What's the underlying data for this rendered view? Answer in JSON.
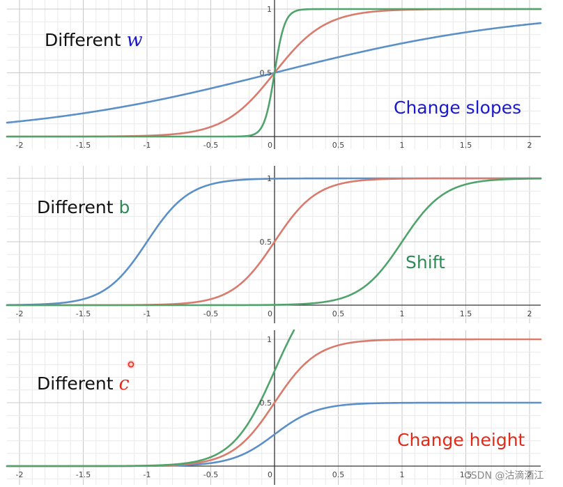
{
  "colors": {
    "blue": "#5b8fc7",
    "red": "#d97a6c",
    "green": "#4fa36b",
    "grid_minor": "#e9e9e9",
    "grid_major": "#c8c8c8",
    "axis": "#333333",
    "label_blue": "#1a1acc",
    "label_green": "#2e8b57",
    "label_red": "#e02a1a"
  },
  "watermark": "CSDN @沽滴酒江",
  "chart_data": [
    {
      "type": "line",
      "title": "",
      "label_prefix": "Different ",
      "label_symbol": "w",
      "annotation": "Change slopes",
      "xlim": [
        -2.1,
        2.1
      ],
      "ylim": [
        0,
        1
      ],
      "x_ticks": [
        "-2",
        "-1.5",
        "-1",
        "-0.5",
        "0",
        "0.5",
        "1",
        "1.5",
        "2"
      ],
      "y_ticks": [
        "0.5",
        "1"
      ],
      "grid": true,
      "series": [
        {
          "color": "blue",
          "formula": "sigmoid(w*x)",
          "w": 1
        },
        {
          "color": "red",
          "formula": "sigmoid(w*x)",
          "w": 5
        },
        {
          "color": "green",
          "formula": "sigmoid(w*x)",
          "w": 25
        }
      ]
    },
    {
      "type": "line",
      "title": "",
      "label_prefix": "Different ",
      "label_symbol": "b",
      "annotation": "Shift",
      "xlim": [
        -2.1,
        2.1
      ],
      "ylim": [
        0,
        1
      ],
      "x_ticks": [
        "-2",
        "-1.5",
        "-1",
        "-0.5",
        "0",
        "0.5",
        "1",
        "1.5",
        "2"
      ],
      "y_ticks": [
        "0.5",
        "1"
      ],
      "grid": true,
      "series": [
        {
          "color": "blue",
          "formula": "sigmoid(6*(x+1))"
        },
        {
          "color": "red",
          "formula": "sigmoid(6*x)"
        },
        {
          "color": "green",
          "formula": "sigmoid(6*(x-1))"
        }
      ]
    },
    {
      "type": "line",
      "title": "",
      "label_prefix": "Different ",
      "label_symbol": "c",
      "annotation": "Change height",
      "xlim": [
        -2.1,
        2.1
      ],
      "ylim": [
        0,
        1
      ],
      "x_ticks": [
        "-2",
        "-1.5",
        "-1",
        "-0.5",
        "0",
        "0.5",
        "1",
        "1.5",
        "2"
      ],
      "y_ticks": [
        "0.5",
        "1"
      ],
      "grid": true,
      "series": [
        {
          "color": "blue",
          "formula": "c*sigmoid(6*x)",
          "c": 0.5
        },
        {
          "color": "red",
          "formula": "c*sigmoid(6*x)",
          "c": 1
        },
        {
          "color": "green",
          "formula": "c*sigmoid(6*x)",
          "c": 1.5
        }
      ]
    }
  ]
}
